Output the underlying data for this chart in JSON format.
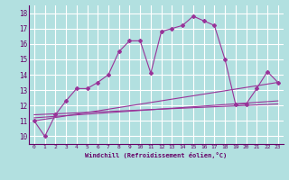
{
  "xlabel": "Windchill (Refroidissement éolien,°C)",
  "background_color": "#b2e0e0",
  "grid_color": "#ffffff",
  "line_color": "#993399",
  "x_ticks": [
    0,
    1,
    2,
    3,
    4,
    5,
    6,
    7,
    8,
    9,
    10,
    11,
    12,
    13,
    14,
    15,
    16,
    17,
    18,
    19,
    20,
    21,
    22,
    23
  ],
  "ylim": [
    9.5,
    18.5
  ],
  "xlim": [
    -0.5,
    23.5
  ],
  "yticks": [
    10,
    11,
    12,
    13,
    14,
    15,
    16,
    17,
    18
  ],
  "line1_x": [
    0,
    1,
    2,
    3,
    4,
    5,
    6,
    7,
    8,
    9,
    10,
    11,
    12,
    13,
    14,
    15,
    16,
    17,
    18,
    19,
    20,
    21,
    22,
    23
  ],
  "line1_y": [
    11.0,
    10.0,
    11.4,
    12.3,
    13.1,
    13.1,
    13.5,
    14.0,
    15.5,
    16.2,
    16.2,
    14.1,
    16.8,
    17.0,
    17.2,
    17.8,
    17.5,
    17.2,
    15.0,
    12.1,
    12.1,
    13.1,
    14.2,
    13.5
  ],
  "line2_x": [
    0,
    23
  ],
  "line2_y": [
    11.0,
    13.5
  ],
  "line3_x": [
    0,
    23
  ],
  "line3_y": [
    11.2,
    12.3
  ],
  "line4_x": [
    0,
    23
  ],
  "line4_y": [
    11.4,
    12.1
  ]
}
